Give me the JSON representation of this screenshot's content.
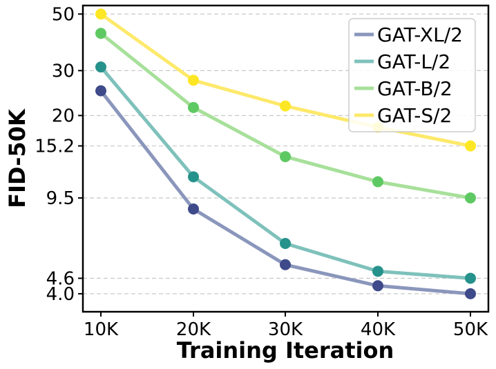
{
  "chart_data": {
    "type": "line",
    "title": "",
    "xlabel": "Training Iteration",
    "ylabel": "FID-50K",
    "x_ticks": [
      "10K",
      "20K",
      "30K",
      "40K",
      "50K"
    ],
    "y_ticks": [
      {
        "value": 4.0,
        "label": "4.0"
      },
      {
        "value": 4.6,
        "label": "4.6"
      },
      {
        "value": 9.5,
        "label": "9.5"
      },
      {
        "value": 15.2,
        "label": "15.2"
      },
      {
        "value": 20,
        "label": "20"
      },
      {
        "value": 30,
        "label": "30"
      },
      {
        "value": 50,
        "label": "50"
      }
    ],
    "x": [
      10000,
      20000,
      30000,
      40000,
      50000
    ],
    "xlim": [
      10000,
      50000
    ],
    "ylim": [
      3.4,
      54
    ],
    "yscale": "log",
    "grid": "horizontal dashed",
    "legend_position": "top-right",
    "series": [
      {
        "name": "GAT-XL/2",
        "line_color": "#8a96bb",
        "marker_color": "#3e4a89",
        "values": [
          25,
          8.6,
          5.2,
          4.3,
          4.0
        ]
      },
      {
        "name": "GAT-L/2",
        "line_color": "#7ec1bb",
        "marker_color": "#26928c",
        "values": [
          31,
          11.5,
          6.3,
          4.9,
          4.6
        ]
      },
      {
        "name": "GAT-B/2",
        "line_color": "#a7e09a",
        "marker_color": "#5ec962",
        "values": [
          42,
          21.5,
          13.8,
          11.0,
          9.5
        ]
      },
      {
        "name": "GAT-S/2",
        "line_color": "#fde96b",
        "marker_color": "#fde725",
        "values": [
          50,
          27.5,
          21.8,
          18.0,
          15.2
        ]
      }
    ]
  }
}
